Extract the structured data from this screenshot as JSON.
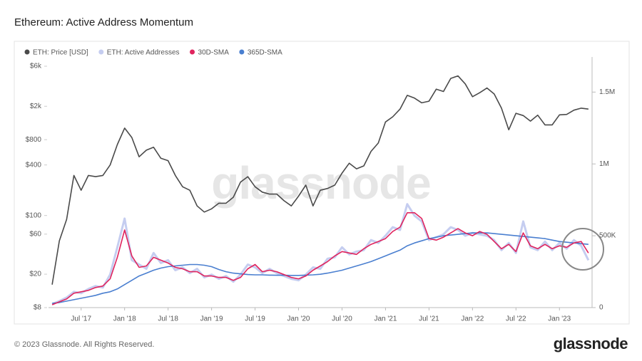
{
  "chart_data": {
    "type": "line",
    "title": "Ethereum: Active Address Momentum",
    "watermark": "glassnode",
    "footer": "© 2023 Glassnode. All Rights Reserved.",
    "logo": "glassnode",
    "categories": [
      null,
      null,
      null,
      null,
      "Jul '17",
      null,
      null,
      null,
      null,
      null,
      "Jan '18",
      null,
      null,
      null,
      null,
      null,
      "Jul '18",
      null,
      null,
      null,
      null,
      null,
      "Jan '19",
      null,
      null,
      null,
      null,
      null,
      "Jul '19",
      null,
      null,
      null,
      null,
      null,
      "Jan '20",
      null,
      null,
      null,
      null,
      null,
      "Jul '20",
      null,
      null,
      null,
      null,
      null,
      "Jan '21",
      null,
      null,
      null,
      null,
      null,
      "Jul '21",
      null,
      null,
      null,
      null,
      null,
      "Jan '22",
      null,
      null,
      null,
      null,
      null,
      "Jul '22",
      null,
      null,
      null,
      null,
      null,
      "Jan '23",
      null,
      null,
      null,
      null
    ],
    "ylog": true,
    "ylim": [
      8,
      6000
    ],
    "yticks": [
      {
        "value": 8,
        "label": "$8"
      },
      {
        "value": 20,
        "label": "$20"
      },
      {
        "value": 60,
        "label": "$60"
      },
      {
        "value": 100,
        "label": "$100"
      },
      {
        "value": 400,
        "label": "$400"
      },
      {
        "value": 800,
        "label": "$800"
      },
      {
        "value": 2000,
        "label": "$2k"
      },
      {
        "value": 6000,
        "label": "$6k"
      }
    ],
    "y2lim": [
      0,
      1680000
    ],
    "y2ticks": [
      0,
      {
        "value": 500000,
        "label": "500K"
      },
      {
        "value": 1000000,
        "label": "1M"
      },
      {
        "value": 1500000,
        "label": "1.5M"
      }
    ],
    "grid": false,
    "series": [
      {
        "name": "ETH: Price [USD]",
        "color": "#4a4a4a",
        "width": 1.6,
        "values": [
          15,
          50,
          90,
          300,
          200,
          300,
          290,
          300,
          400,
          700,
          1100,
          850,
          500,
          600,
          650,
          480,
          450,
          300,
          220,
          200,
          130,
          110,
          120,
          140,
          140,
          165,
          250,
          290,
          220,
          190,
          180,
          180,
          150,
          130,
          170,
          230,
          130,
          200,
          210,
          230,
          320,
          420,
          360,
          390,
          580,
          730,
          1300,
          1500,
          1850,
          2700,
          2500,
          2200,
          2300,
          3200,
          3000,
          4300,
          4600,
          3700,
          2600,
          2900,
          3300,
          2800,
          1900,
          1050,
          1650,
          1550,
          1330,
          1570,
          1200,
          1200,
          1580,
          1600,
          1800,
          1900,
          1850
        ]
      },
      {
        "name": "ETH: Active Addresses",
        "color": "#c5cdf0",
        "axis": "y2",
        "width": 3,
        "values": [
          25000,
          45000,
          70000,
          110000,
          100000,
          130000,
          150000,
          140000,
          230000,
          420000,
          620000,
          330000,
          300000,
          270000,
          380000,
          310000,
          330000,
          260000,
          280000,
          240000,
          270000,
          210000,
          230000,
          200000,
          220000,
          180000,
          230000,
          300000,
          280000,
          240000,
          270000,
          240000,
          220000,
          200000,
          190000,
          230000,
          280000,
          270000,
          340000,
          350000,
          420000,
          370000,
          390000,
          400000,
          470000,
          450000,
          500000,
          560000,
          540000,
          720000,
          640000,
          600000,
          470000,
          490000,
          510000,
          560000,
          540000,
          500000,
          520000,
          510000,
          500000,
          470000,
          400000,
          450000,
          380000,
          600000,
          420000,
          400000,
          460000,
          400000,
          450000,
          410000,
          470000,
          430000,
          330000
        ]
      },
      {
        "name": "30D-SMA",
        "color": "#e0245e",
        "axis": "y2",
        "width": 1.6,
        "values": [
          20000,
          40000,
          60000,
          100000,
          110000,
          120000,
          140000,
          150000,
          200000,
          350000,
          540000,
          360000,
          280000,
          290000,
          350000,
          330000,
          310000,
          280000,
          270000,
          250000,
          250000,
          220000,
          220000,
          210000,
          210000,
          190000,
          210000,
          270000,
          300000,
          250000,
          260000,
          250000,
          230000,
          210000,
          200000,
          220000,
          260000,
          290000,
          320000,
          360000,
          390000,
          380000,
          370000,
          410000,
          440000,
          460000,
          480000,
          530000,
          560000,
          660000,
          660000,
          620000,
          480000,
          470000,
          490000,
          520000,
          550000,
          520000,
          500000,
          530000,
          510000,
          460000,
          410000,
          440000,
          390000,
          520000,
          430000,
          410000,
          440000,
          410000,
          430000,
          420000,
          450000,
          460000,
          380000
        ]
      },
      {
        "name": "365D-SMA",
        "color": "#4a7fd0",
        "axis": "y2",
        "width": 1.6,
        "values": [
          30000,
          35000,
          45000,
          55000,
          65000,
          75000,
          85000,
          100000,
          110000,
          130000,
          160000,
          190000,
          220000,
          240000,
          260000,
          275000,
          285000,
          290000,
          295000,
          300000,
          300000,
          295000,
          285000,
          265000,
          250000,
          240000,
          235000,
          230000,
          228000,
          228000,
          226000,
          225000,
          225000,
          224000,
          224000,
          226000,
          228000,
          232000,
          240000,
          250000,
          260000,
          275000,
          290000,
          305000,
          320000,
          340000,
          360000,
          380000,
          400000,
          430000,
          450000,
          465000,
          480000,
          490000,
          500000,
          505000,
          510000,
          515000,
          520000,
          520000,
          520000,
          515000,
          510000,
          505000,
          500000,
          495000,
          490000,
          485000,
          480000,
          470000,
          460000,
          455000,
          450000,
          445000,
          440000
        ]
      }
    ]
  }
}
